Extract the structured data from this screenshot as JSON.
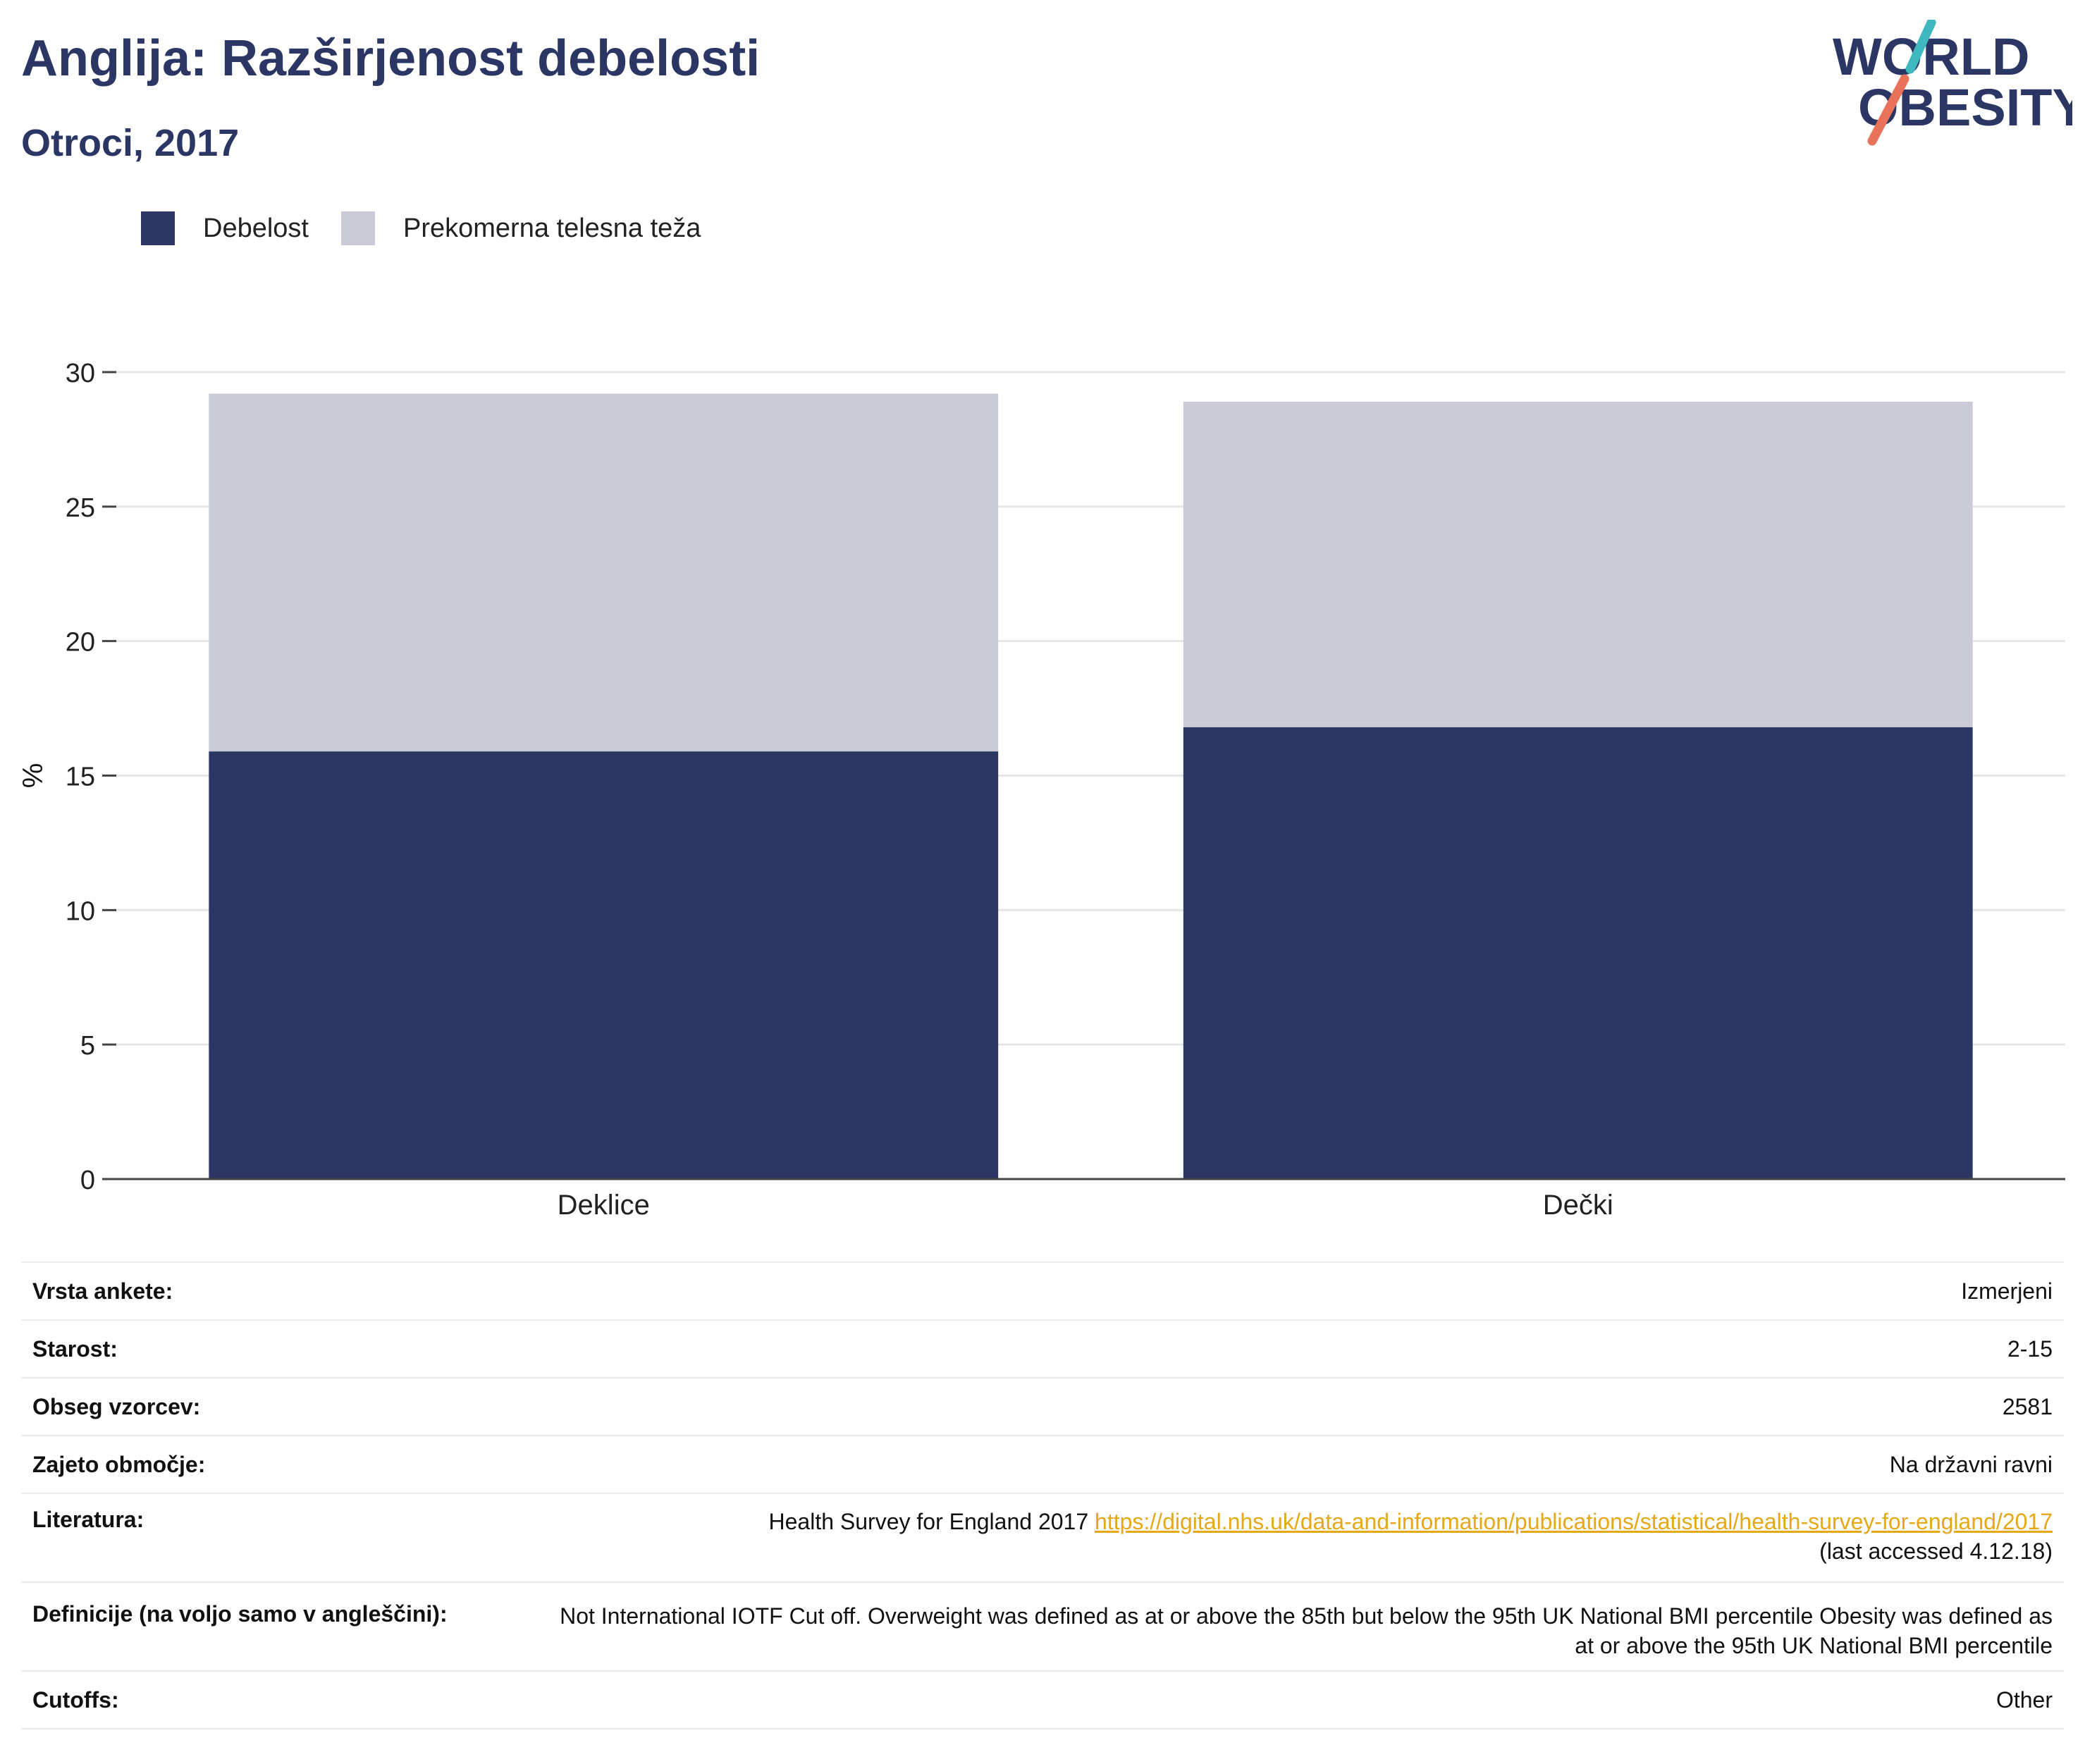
{
  "header": {
    "title": "Anglija: Razširjenost debelosti",
    "subtitle": "Otroci, 2017"
  },
  "logo": {
    "line1": "WORLD",
    "line2": "OBESITY",
    "colors": [
      "#2b3664",
      "#3fb8c0",
      "#e8735a"
    ]
  },
  "legend": {
    "items": [
      {
        "label": "Debelost",
        "color": "#2b3664"
      },
      {
        "label": "Prekomerna telesna teža",
        "color": "#cacbd7"
      }
    ]
  },
  "chart_data": {
    "type": "bar",
    "stacked": true,
    "categories": [
      "Deklice",
      "Dečki"
    ],
    "series": [
      {
        "name": "Debelost",
        "color": "#2b3664",
        "values": [
          15.9,
          16.8
        ]
      },
      {
        "name": "Prekomerna telesna teža",
        "color": "#cacbd7",
        "values": [
          13.3,
          12.1
        ]
      }
    ],
    "ylabel": "%",
    "ylim": [
      0,
      30
    ],
    "yticks": [
      0,
      5,
      10,
      15,
      20,
      25,
      30
    ],
    "grid": true,
    "legend_position": "top-left"
  },
  "info": {
    "rows": [
      {
        "key": "Vrsta ankete:",
        "value": "Izmerjeni"
      },
      {
        "key": "Starost:",
        "value": "2-15"
      },
      {
        "key": "Obseg vzorcev:",
        "value": "2581"
      },
      {
        "key": "Zajeto območje:",
        "value": "Na državni ravni"
      },
      {
        "key": "Literatura:",
        "value": "Health Survey for England 2017 ",
        "link": "https://digital.nhs.uk/data-and-information/publications/statistical/health-survey-for-england/2017",
        "suffix": "(last accessed 4.12.18)"
      },
      {
        "key": "Definicije (na voljo samo v angleščini):",
        "value": "Not International IOTF Cut off. Overweight was defined as at or above the 85th but below the 95th UK National BMI percentile Obesity was defined as at or above the 95th UK National BMI percentile"
      },
      {
        "key": "Cutoffs:",
        "value": "Other"
      }
    ]
  }
}
